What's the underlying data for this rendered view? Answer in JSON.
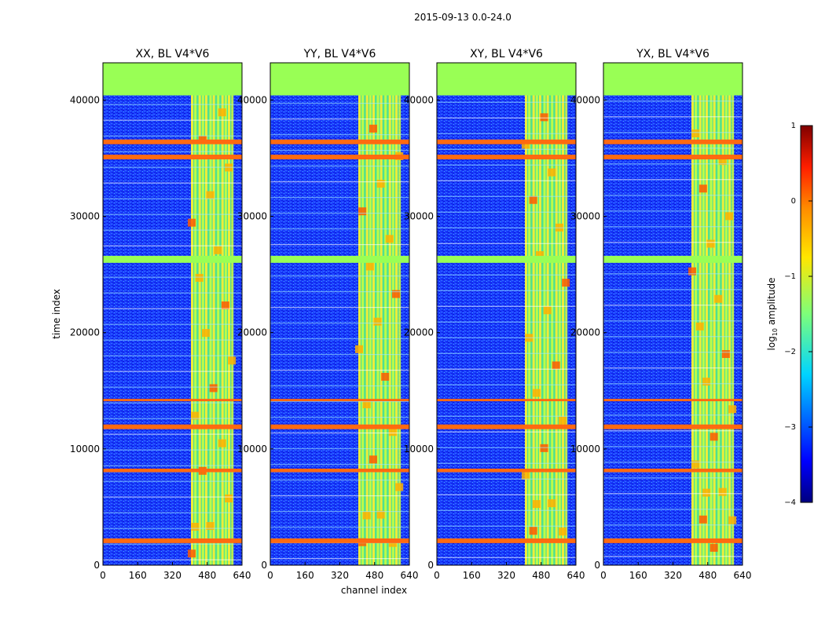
{
  "chart_data": {
    "type": "heatmap",
    "suptitle": "2015-09-13 0.0-24.0",
    "xlabel": "channel index",
    "ylabel": "time index",
    "xlim": [
      0,
      640
    ],
    "ylim": [
      0,
      43200
    ],
    "xticks": [
      "0",
      "160",
      "320",
      "480",
      "640"
    ],
    "yticks": [
      "0",
      "10000",
      "20000",
      "30000",
      "40000"
    ],
    "panels": [
      {
        "title": "XX, BL V4*V6"
      },
      {
        "title": "YY, BL V4*V6"
      },
      {
        "title": "XY, BL V4*V6"
      },
      {
        "title": "YX, BL V4*V6"
      }
    ],
    "colorbar": {
      "label": "log$_{10}$ amplitude",
      "label_main": "log",
      "label_sub": "10",
      "label_rest": " amplitude",
      "range": [
        -4,
        1
      ],
      "ticks": [
        "1",
        "0",
        "−1",
        "−2",
        "−3",
        "−4"
      ],
      "colormap": "jet"
    },
    "flagged_time_bands": [
      [
        40400,
        42000
      ],
      [
        36200,
        36600
      ],
      [
        34900,
        35300
      ],
      [
        26000,
        26600
      ],
      [
        8000,
        8300
      ],
      [
        11700,
        12100
      ],
      [
        14100,
        14300
      ],
      [
        1900,
        2300
      ]
    ],
    "active_channel_range": [
      405,
      590
    ],
    "colors": {
      "background": "#00008f",
      "low": "#0040ff",
      "mid": "#30c0ff",
      "band": "#a0ff60",
      "hot": "#ff6000",
      "flag": "#99ff55"
    }
  }
}
